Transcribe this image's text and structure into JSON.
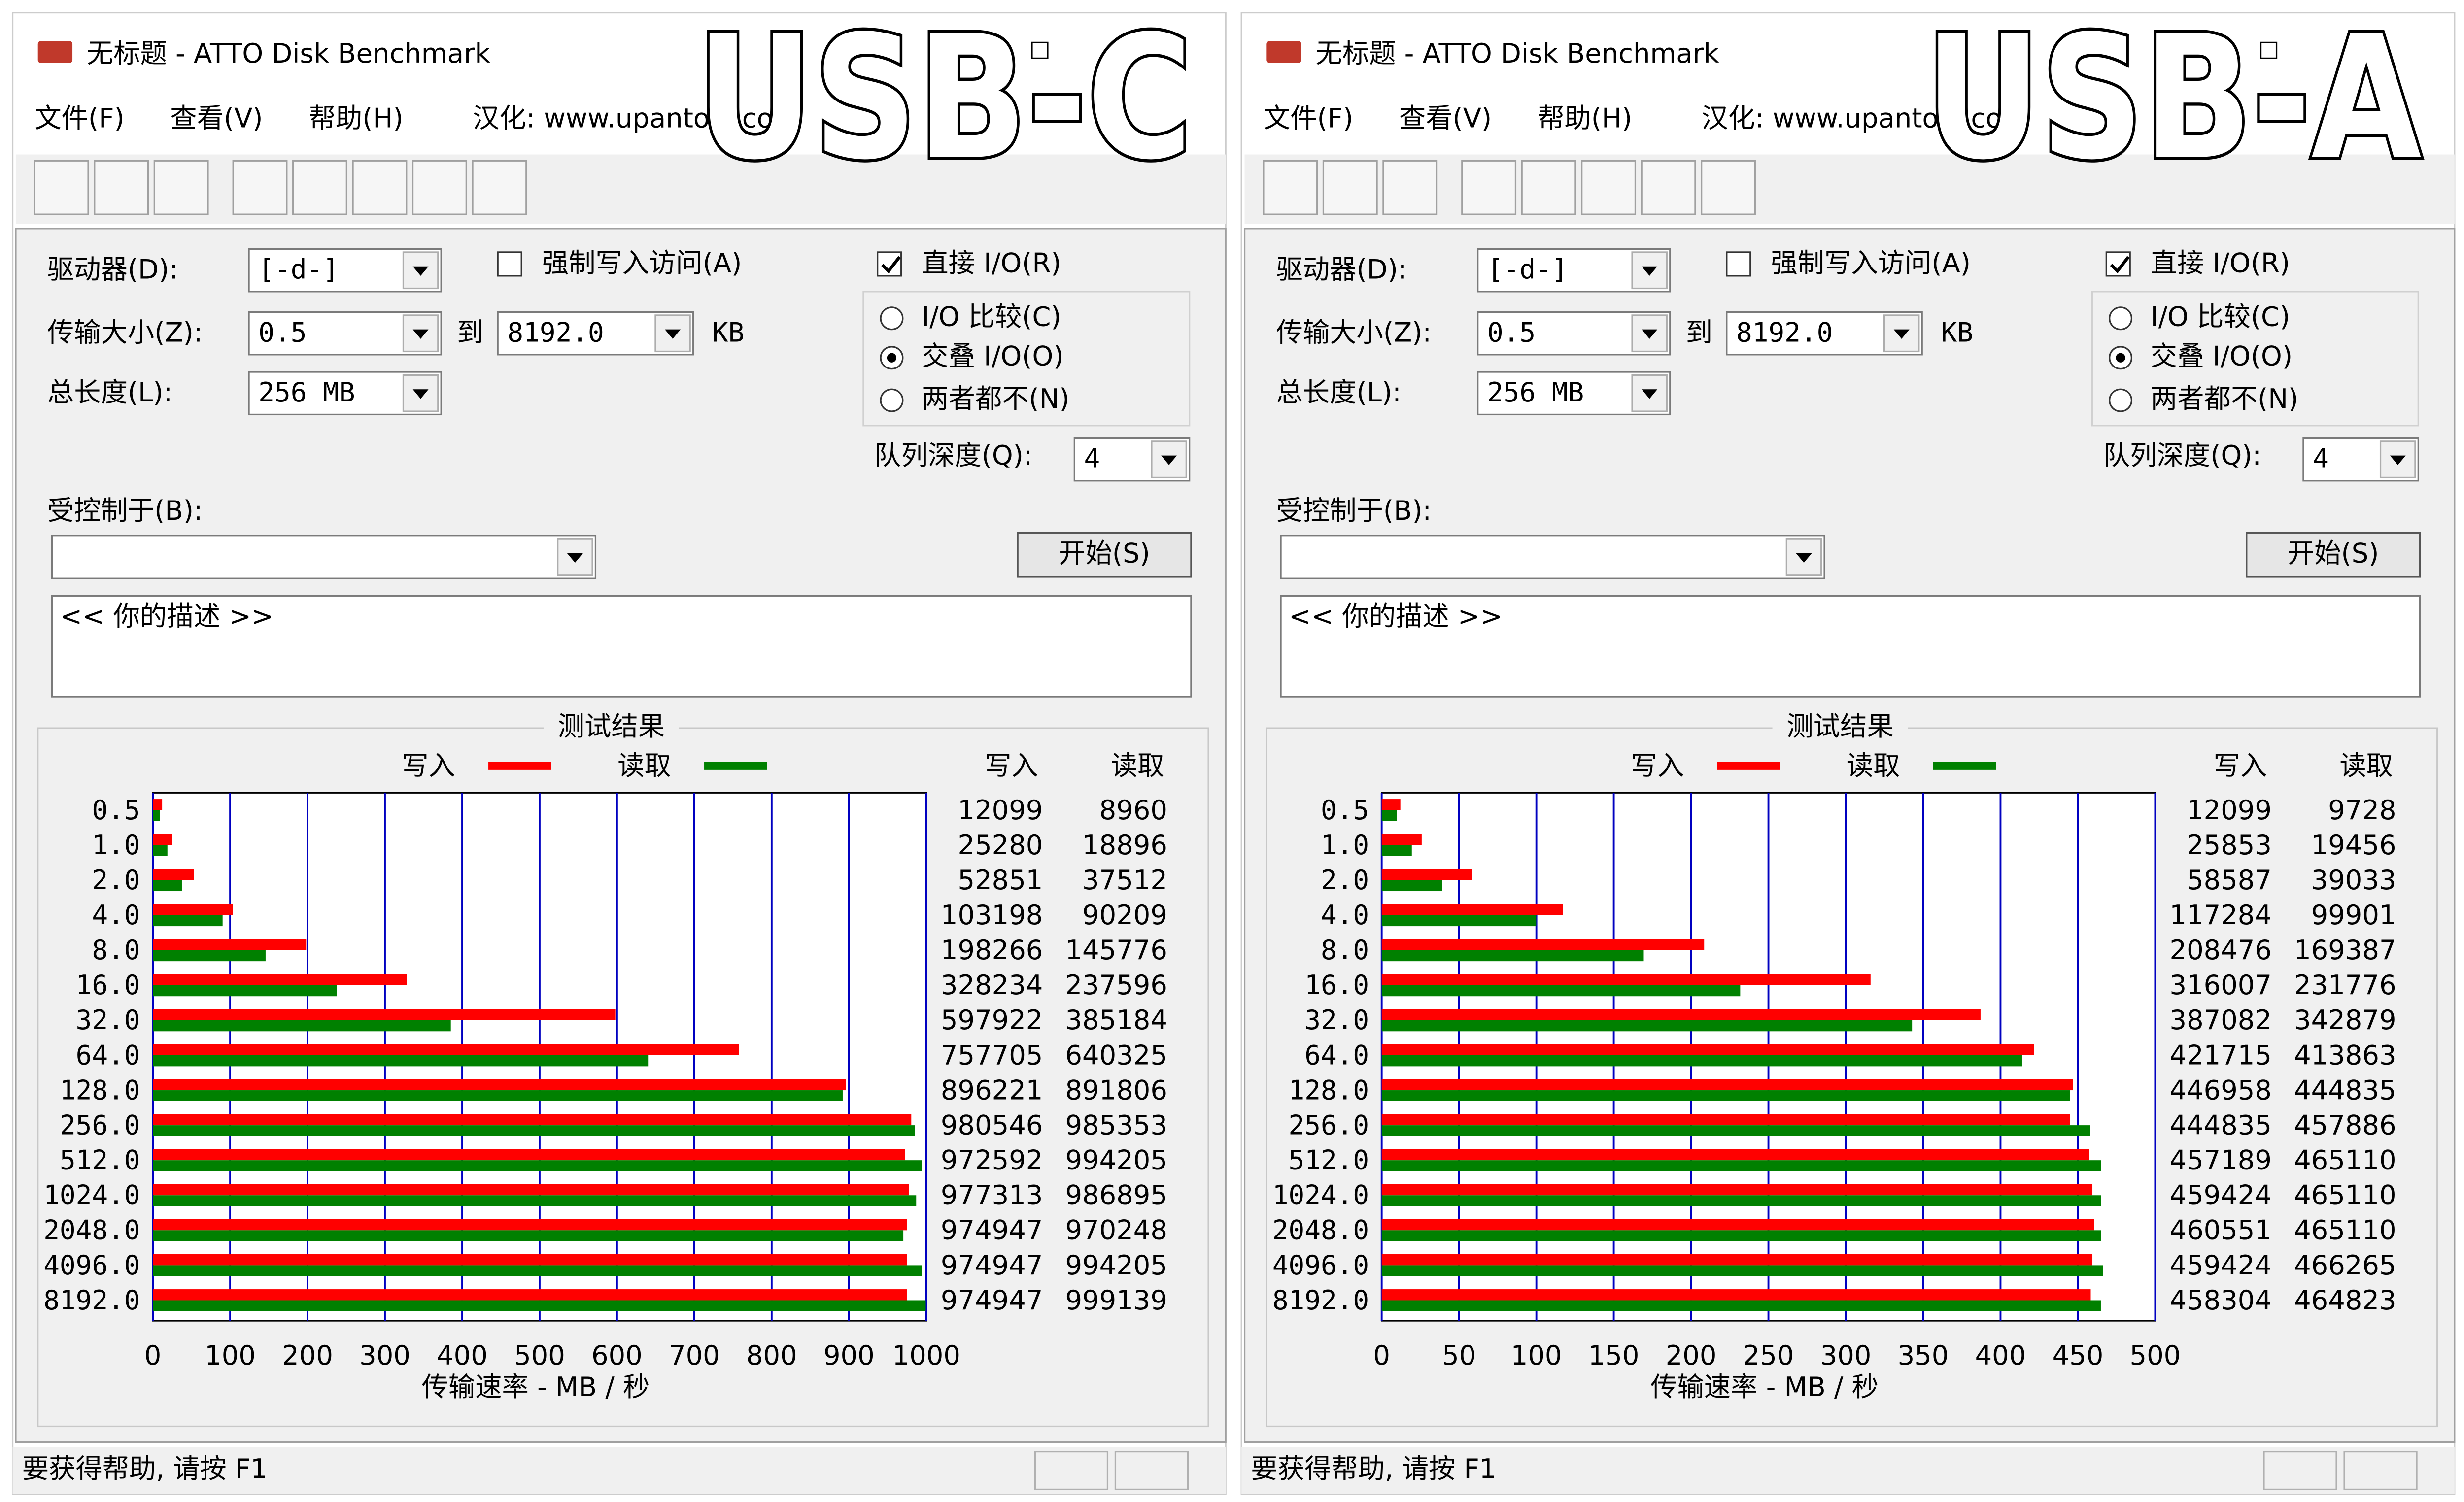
{
  "windows": [
    {
      "overlay_label": "USB-C",
      "title": "无标题 - ATTO Disk Benchmark",
      "menu": [
        "文件(F)",
        "查看(V)",
        "帮助(H)",
        "汉化: www.upantool.com"
      ],
      "settings": {
        "drive_label": "驱动器(D):",
        "drive": "[-d-]",
        "transfer_label": "传输大小(Z):",
        "transfer_from": "0.5",
        "to": "到",
        "transfer_to": "8192.0",
        "unit": "KB",
        "length_label": "总长度(L):",
        "length": "256 MB",
        "force_write": "强制写入访问(A)",
        "direct_io": "直接 I/O(R)",
        "radio_options": [
          "I/O 比较(C)",
          "交叠 I/O(O)",
          "两者都不(N)"
        ],
        "queue_label": "队列深度(Q):",
        "queue": "4",
        "controlled_label": "受控制于(B):",
        "start": "开始(S)",
        "description": "<<   你的描述   >>"
      },
      "results": {
        "title": "测试结果",
        "categories": [
          "0.5",
          "1.0",
          "2.0",
          "4.0",
          "8.0",
          "16.0",
          "32.0",
          "64.0",
          "128.0",
          "256.0",
          "512.0",
          "1024.0",
          "2048.0",
          "4096.0",
          "8192.0"
        ],
        "series": [
          {
            "name": "写入",
            "color": "#ff0000",
            "values": [
              12099,
              25280,
              52851,
              103198,
              198266,
              328234,
              597922,
              757705,
              896221,
              980546,
              972592,
              977313,
              974947,
              974947,
              974947
            ]
          },
          {
            "name": "读取",
            "color": "#008000",
            "values": [
              8960,
              18896,
              37512,
              90209,
              145776,
              237596,
              385184,
              640325,
              891806,
              985353,
              994205,
              986895,
              970248,
              994205,
              999139
            ]
          }
        ],
        "xlim": [
          0,
          1000000
        ],
        "xticks": [
          0,
          {
            "value": 100000,
            "label": "100"
          },
          {
            "value": 200000,
            "label": "200"
          },
          {
            "value": 300000,
            "label": "300"
          },
          {
            "value": 400000,
            "label": "400"
          },
          {
            "value": 500000,
            "label": "500"
          },
          {
            "value": 600000,
            "label": "600"
          },
          {
            "value": 700000,
            "label": "700"
          },
          {
            "value": 800000,
            "label": "800"
          },
          {
            "value": 900000,
            "label": "900"
          },
          {
            "value": 1000000,
            "label": "1000"
          }
        ],
        "grid_color": "#0000c0",
        "x_label": "传输速率 - MB / 秒"
      },
      "status": "要获得帮助, 请按 F1"
    },
    {
      "overlay_label": "USB-A",
      "title": "无标题 - ATTO Disk Benchmark",
      "menu": [
        "文件(F)",
        "查看(V)",
        "帮助(H)",
        "汉化: www.upantool.com"
      ],
      "settings": {
        "drive_label": "驱动器(D):",
        "drive": "[-d-]",
        "transfer_label": "传输大小(Z):",
        "transfer_from": "0.5",
        "to": "到",
        "transfer_to": "8192.0",
        "unit": "KB",
        "length_label": "总长度(L):",
        "length": "256 MB",
        "force_write": "强制写入访问(A)",
        "direct_io": "直接 I/O(R)",
        "radio_options": [
          "I/O 比较(C)",
          "交叠 I/O(O)",
          "两者都不(N)"
        ],
        "queue_label": "队列深度(Q):",
        "queue": "4",
        "controlled_label": "受控制于(B):",
        "start": "开始(S)",
        "description": "<<   你的描述   >>"
      },
      "results": {
        "title": "测试结果",
        "categories": [
          "0.5",
          "1.0",
          "2.0",
          "4.0",
          "8.0",
          "16.0",
          "32.0",
          "64.0",
          "128.0",
          "256.0",
          "512.0",
          "1024.0",
          "2048.0",
          "4096.0",
          "8192.0"
        ],
        "series": [
          {
            "name": "写入",
            "color": "#ff0000",
            "values": [
              12099,
              25853,
              58587,
              117284,
              208476,
              316007,
              387082,
              421715,
              446958,
              444835,
              457189,
              459424,
              460551,
              459424,
              458304
            ]
          },
          {
            "name": "读取",
            "color": "#008000",
            "values": [
              9728,
              19456,
              39033,
              99901,
              169387,
              231776,
              342879,
              413863,
              444835,
              457886,
              465110,
              465110,
              465110,
              466265,
              464823
            ]
          }
        ],
        "xlim": [
          0,
          500000
        ],
        "xticks": [
          0,
          {
            "value": 50000,
            "label": "50"
          },
          {
            "value": 100000,
            "label": "100"
          },
          {
            "value": 150000,
            "label": "150"
          },
          {
            "value": 200000,
            "label": "200"
          },
          {
            "value": 250000,
            "label": "250"
          },
          {
            "value": 300000,
            "label": "300"
          },
          {
            "value": 350000,
            "label": "350"
          },
          {
            "value": 400000,
            "label": "400"
          },
          {
            "value": 450000,
            "label": "450"
          },
          {
            "value": 500000,
            "label": "500"
          }
        ],
        "grid_color": "#0000c0",
        "x_label": "传输速率 - MB / 秒"
      },
      "status": "要获得帮助, 请按 F1"
    }
  ]
}
